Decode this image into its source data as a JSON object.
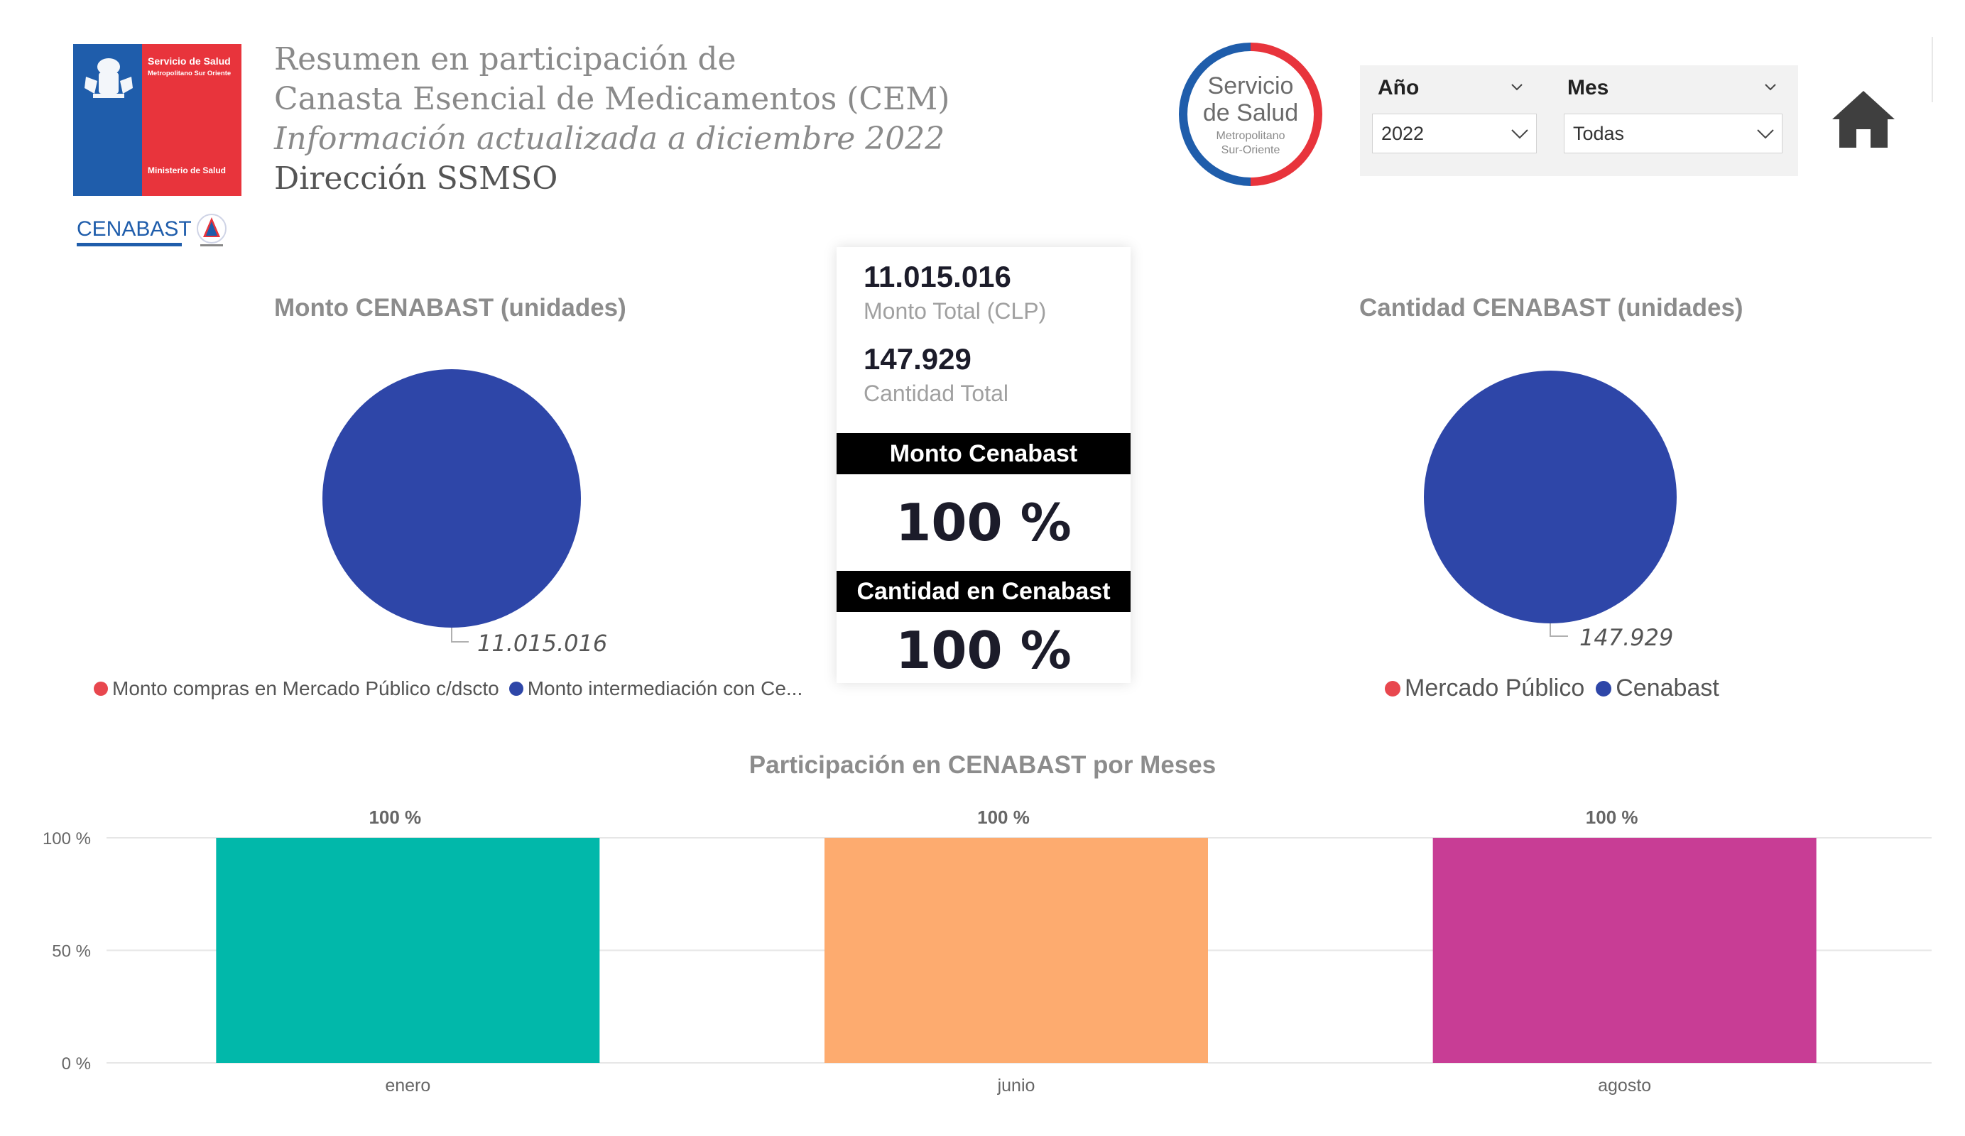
{
  "header": {
    "logo_gov": {
      "line1": "Servicio de Salud",
      "line2": "Metropolitano Sur Oriente",
      "line3": "Ministerio de Salud"
    },
    "logo_cenabast": {
      "text": "CENABAST"
    },
    "title_line1": "Resumen en participación de",
    "title_line2": "Canasta Esencial de Medicamentos (CEM)",
    "title_line3": "Información actualizada a diciembre 2022",
    "title_line4": "Dirección SSMSO",
    "badge": {
      "line1": "Servicio",
      "line2": "de Salud",
      "line3": "Metropolitano",
      "line4": "Sur-Oriente"
    }
  },
  "slicers": {
    "year": {
      "label": "Año",
      "value": "2022"
    },
    "month": {
      "label": "Mes",
      "value": "Todas"
    }
  },
  "home_icon": "home-icon",
  "pie_monto": {
    "title": "Monto CENABAST (unidades)",
    "value_label": "11.015.016",
    "legend": [
      {
        "label": "Monto compras en Mercado Público c/dscto",
        "color": "#e8474e"
      },
      {
        "label": "Monto intermediación con Ce...",
        "color": "#2e46a8"
      }
    ]
  },
  "pie_cantidad": {
    "title": "Cantidad CENABAST (unidades)",
    "value_label": "147.929",
    "legend": [
      {
        "label": "Mercado Público",
        "color": "#e8474e"
      },
      {
        "label": "Cenabast",
        "color": "#2e46a8"
      }
    ]
  },
  "kpi": {
    "monto_total_value": "11.015.016",
    "monto_total_label": "Monto Total (CLP)",
    "cantidad_total_value": "147.929",
    "cantidad_total_label": "Cantidad Total",
    "monto_header": "Monto Cenabast",
    "monto_pct": "100 %",
    "cantidad_header": "Cantidad en Cenabast",
    "cantidad_pct": "100 %"
  },
  "bar_chart": {
    "title": "Participación en CENABAST por Meses"
  },
  "chart_data": [
    {
      "type": "pie",
      "title": "Monto CENABAST (unidades)",
      "categories": [
        "Monto compras en Mercado Público c/dscto",
        "Monto intermediación con Ce..."
      ],
      "values": [
        0,
        11015016
      ],
      "colors": [
        "#e8474e",
        "#2e46a8"
      ],
      "data_labels": [
        "",
        "11.015.016"
      ],
      "legend": "bottom"
    },
    {
      "type": "pie",
      "title": "Cantidad CENABAST (unidades)",
      "categories": [
        "Mercado Público",
        "Cenabast"
      ],
      "values": [
        0,
        147929
      ],
      "colors": [
        "#e8474e",
        "#2e46a8"
      ],
      "data_labels": [
        "",
        "147.929"
      ],
      "legend": "bottom"
    },
    {
      "type": "bar",
      "title": "Participación en CENABAST por Meses",
      "categories": [
        "enero",
        "junio",
        "agosto"
      ],
      "values": [
        100,
        100,
        100
      ],
      "data_labels": [
        "100 %",
        "100 %",
        "100 %"
      ],
      "colors": [
        "#01b8aa",
        "#fdab6f",
        "#c83d95"
      ],
      "ylim": [
        0,
        100
      ],
      "yticks": [
        "0 %",
        "50 %",
        "100 %"
      ],
      "grid": true
    }
  ]
}
